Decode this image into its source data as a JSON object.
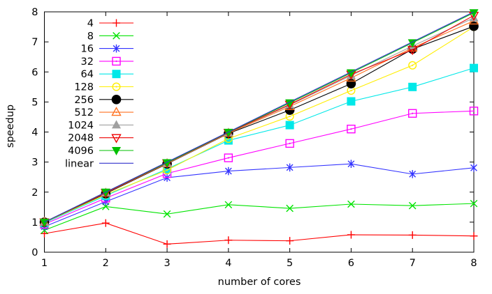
{
  "chart_data": {
    "type": "line",
    "title": "",
    "xlabel": "number of cores",
    "ylabel": "speedup",
    "xlim": [
      1,
      8
    ],
    "ylim": [
      0,
      8
    ],
    "x_ticks": [
      1,
      2,
      3,
      4,
      5,
      6,
      7,
      8
    ],
    "y_ticks": [
      0,
      1,
      2,
      3,
      4,
      5,
      6,
      7,
      8
    ],
    "grid": false,
    "legend_position": "top-left-inside",
    "x": [
      1,
      2,
      3,
      4,
      5,
      6,
      7,
      8
    ],
    "series": [
      {
        "name": "4",
        "color": "#ff0000",
        "marker": "plus",
        "values": [
          0.62,
          0.97,
          0.27,
          0.4,
          0.38,
          0.58,
          0.57,
          0.54
        ]
      },
      {
        "name": "8",
        "color": "#00e400",
        "marker": "cross",
        "values": [
          0.73,
          1.52,
          1.27,
          1.58,
          1.46,
          1.6,
          1.55,
          1.62
        ]
      },
      {
        "name": "16",
        "color": "#3333ff",
        "marker": "asterisk",
        "values": [
          0.85,
          1.68,
          2.48,
          2.7,
          2.82,
          2.94,
          2.6,
          2.81
        ]
      },
      {
        "name": "32",
        "color": "#ff00ff",
        "marker": "square-open",
        "values": [
          0.93,
          1.8,
          2.62,
          3.14,
          3.62,
          4.1,
          4.62,
          4.7
        ]
      },
      {
        "name": "64",
        "color": "#00e8e8",
        "marker": "square-filled",
        "values": [
          0.97,
          1.88,
          2.77,
          3.72,
          4.23,
          5.02,
          5.5,
          6.13
        ]
      },
      {
        "name": "128",
        "color": "#ffee00",
        "marker": "circle-open",
        "values": [
          0.99,
          1.92,
          2.73,
          3.78,
          4.52,
          5.38,
          6.22,
          7.5
        ]
      },
      {
        "name": "256",
        "color": "#000000",
        "marker": "circle-filled",
        "values": [
          1.0,
          1.95,
          2.94,
          3.95,
          4.73,
          5.61,
          6.76,
          7.52
        ]
      },
      {
        "name": "512",
        "color": "#ff7220",
        "marker": "triangle-up-open",
        "values": [
          1.0,
          1.97,
          2.95,
          3.96,
          4.85,
          5.8,
          6.8,
          7.7
        ]
      },
      {
        "name": "1024",
        "color": "#a0a0a0",
        "marker": "triangle-up-filled",
        "values": [
          1.0,
          1.98,
          2.96,
          3.97,
          4.9,
          5.88,
          6.86,
          7.8
        ]
      },
      {
        "name": "2048",
        "color": "#ee0000",
        "marker": "triangle-down-open",
        "values": [
          1.0,
          1.98,
          2.97,
          3.98,
          4.92,
          5.92,
          6.74,
          7.88
        ]
      },
      {
        "name": "4096",
        "color": "#00c000",
        "marker": "triangle-down-filled",
        "values": [
          1.0,
          2.0,
          2.98,
          3.99,
          4.97,
          5.97,
          6.97,
          7.97
        ]
      },
      {
        "name": "linear",
        "color": "#3333cc",
        "marker": "none",
        "values": [
          1,
          2,
          3,
          4,
          5,
          6,
          7,
          8
        ]
      }
    ]
  }
}
